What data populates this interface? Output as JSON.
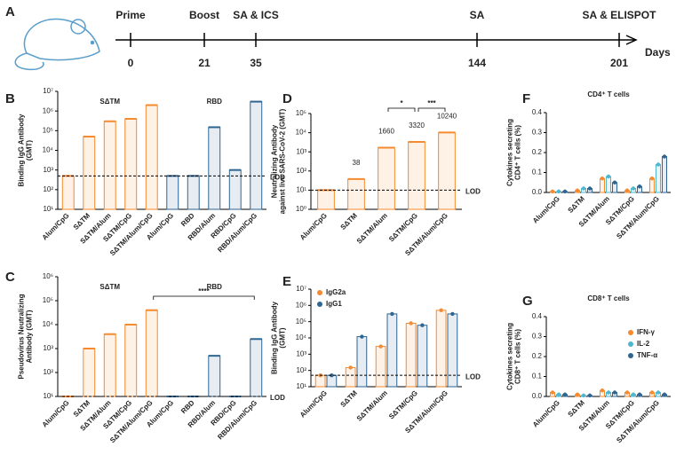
{
  "timeline": {
    "label": "A",
    "unit": "Days",
    "events": [
      {
        "name": "Prime",
        "day": 0
      },
      {
        "name": "Boost",
        "day": 21
      },
      {
        "name": "SA & ICS",
        "day": 35
      },
      {
        "name": "SA",
        "day": 144
      },
      {
        "name": "SA & ELISPOT",
        "day": 201
      }
    ]
  },
  "chart_data": [
    {
      "type": "bar",
      "label": "B",
      "log_scale": true,
      "ylabel": [
        "Binding IgG Antibody",
        "(GMT)"
      ],
      "categories": [
        "Alum/CpG",
        "SΔTM",
        "SΔTM/Alum",
        "SΔTM/CpG",
        "SΔTM/Alum/CpG",
        "Alum/CpG",
        "RBD",
        "RBD/Alum",
        "RBD/CpG",
        "RBD/Alum/CpG"
      ],
      "values": [
        500,
        50000,
        300000,
        400000,
        2000000,
        500,
        500,
        150000,
        1000,
        3000000
      ],
      "colors": [
        "#f58a2e",
        "#f58a2e",
        "#f58a2e",
        "#f58a2e",
        "#f58a2e",
        "#2f6591",
        "#2f6591",
        "#2f6591",
        "#2f6591",
        "#2f6591"
      ],
      "groups": [
        {
          "label": "SΔTM",
          "color": "#f58a2e"
        },
        {
          "label": "RBD",
          "color": "#2f6591"
        }
      ],
      "lod": 500,
      "lod_label": "LOD",
      "ylim": [
        10,
        10000000
      ],
      "yticks": [
        {
          "value": 10,
          "label": "10¹"
        },
        {
          "value": 100,
          "label": "10²"
        },
        {
          "value": 1000,
          "label": "10³"
        },
        {
          "value": 10000,
          "label": "10⁴"
        },
        {
          "value": 100000,
          "label": "10⁵"
        },
        {
          "value": 1000000,
          "label": "10⁶"
        },
        {
          "value": 10000000,
          "label": "10⁷"
        }
      ]
    },
    {
      "type": "bar",
      "label": "C",
      "log_scale": true,
      "ylabel": [
        "Pseudovirus Neutralizing",
        "Antibody (GMT)"
      ],
      "categories": [
        "Alum/CpG",
        "SΔTM",
        "SΔTM/Alum",
        "SΔTM/CpG",
        "SΔTM/Alum/CpG",
        "Alum/CpG",
        "RBD",
        "RBD/Alum",
        "RBD/CpG",
        "RBD/Alum/CpG"
      ],
      "values": [
        10,
        1000,
        4000,
        10000,
        40000,
        10,
        10,
        500,
        10,
        2500
      ],
      "colors": [
        "#f58a2e",
        "#f58a2e",
        "#f58a2e",
        "#f58a2e",
        "#f58a2e",
        "#2f6591",
        "#2f6591",
        "#2f6591",
        "#2f6591",
        "#2f6591"
      ],
      "groups": [
        {
          "label": "SΔTM",
          "color": "#f58a2e"
        },
        {
          "label": "RBD",
          "color": "#2f6591"
        }
      ],
      "annotations": [
        {
          "text": "****",
          "between": [
            4,
            9
          ]
        }
      ],
      "lod": 10,
      "lod_label": "LOD",
      "ylim": [
        10,
        1000000
      ],
      "yticks": [
        {
          "value": 10,
          "label": "10¹"
        },
        {
          "value": 100,
          "label": "10²"
        },
        {
          "value": 1000,
          "label": "10³"
        },
        {
          "value": 10000,
          "label": "10⁴"
        },
        {
          "value": 100000,
          "label": "10⁵"
        },
        {
          "value": 1000000,
          "label": "10⁶"
        }
      ]
    },
    {
      "type": "bar",
      "label": "D",
      "log_scale": true,
      "ylabel": [
        "Neutralizing Antibody",
        "against live SARS-CoV-2 (GMT)"
      ],
      "categories": [
        "Alum/CpG",
        "SΔTM",
        "SΔTM/Alum",
        "SΔTM/CpG",
        "SΔTM/Alum/CpG"
      ],
      "values": [
        10,
        38,
        1660,
        3320,
        10240
      ],
      "value_labels": [
        null,
        "38",
        "1660",
        "3320",
        "10240"
      ],
      "colors": [
        "#f58a2e",
        "#f58a2e",
        "#f58a2e",
        "#f58a2e",
        "#f58a2e"
      ],
      "annotations": [
        {
          "text": "*",
          "between": [
            2,
            3
          ]
        },
        {
          "text": "***",
          "between": [
            3,
            4
          ]
        }
      ],
      "lod": 10,
      "lod_label": "LOD",
      "ylim": [
        1,
        100000
      ],
      "yticks": [
        {
          "value": 1,
          "label": "10⁰"
        },
        {
          "value": 10,
          "label": "10¹"
        },
        {
          "value": 100,
          "label": "10²"
        },
        {
          "value": 1000,
          "label": "10³"
        },
        {
          "value": 10000,
          "label": "10⁴"
        },
        {
          "value": 100000,
          "label": "10⁵"
        }
      ]
    },
    {
      "type": "grouped_bar",
      "label": "E",
      "log_scale": true,
      "ylabel": [
        "Binding IgG Antibody",
        "(GMT)"
      ],
      "legend": "top-left",
      "categories": [
        "Alum/CpG",
        "SΔTM",
        "SΔTM/Alum",
        "SΔTM/CpG",
        "SΔTM/Alum/CpG"
      ],
      "series": [
        {
          "name": "IgG2a",
          "color": "#f58a2e",
          "values": [
            50,
            150,
            3000,
            80000,
            500000
          ]
        },
        {
          "name": "IgG1",
          "color": "#2f6591",
          "values": [
            50,
            12000,
            300000,
            60000,
            300000
          ]
        }
      ],
      "lod": 50,
      "lod_label": "LOD",
      "ylim": [
        10,
        10000000
      ],
      "yticks": [
        {
          "value": 10,
          "label": "10¹"
        },
        {
          "value": 100,
          "label": "10²"
        },
        {
          "value": 1000,
          "label": "10³"
        },
        {
          "value": 10000,
          "label": "10⁴"
        },
        {
          "value": 100000,
          "label": "10⁵"
        },
        {
          "value": 1000000,
          "label": "10⁶"
        },
        {
          "value": 10000000,
          "label": "10⁷"
        }
      ]
    },
    {
      "type": "grouped_bar",
      "label": "F",
      "title": "CD4⁺ T cells",
      "log_scale": false,
      "ylabel": [
        "Cytokines secreting",
        "CD4⁺ T cells (%)"
      ],
      "legend": "none",
      "categories": [
        "Alum/CpG",
        "SΔTM",
        "SΔTM/Alum",
        "SΔTM/CpG",
        "SΔTM/Alum/CpG"
      ],
      "series": [
        {
          "name": "IFN-γ",
          "color": "#f58a2e",
          "values": [
            0.005,
            0.01,
            0.07,
            0.01,
            0.07
          ]
        },
        {
          "name": "IL-2",
          "color": "#4fb6d0",
          "values": [
            0.005,
            0.02,
            0.08,
            0.02,
            0.14
          ]
        },
        {
          "name": "TNF-α",
          "color": "#2f6591",
          "values": [
            0.005,
            0.02,
            0.05,
            0.03,
            0.18
          ]
        }
      ],
      "ylim": [
        0,
        0.4
      ],
      "yticks": [
        {
          "value": 0,
          "label": "0.0"
        },
        0.1,
        0.2,
        0.3,
        0.4
      ]
    },
    {
      "type": "grouped_bar",
      "label": "G",
      "title": "CD8⁺ T cells",
      "log_scale": false,
      "ylabel": [
        "Cytokines secreting",
        "CD8⁺ T cells (%)"
      ],
      "legend": "right",
      "categories": [
        "Alum/CpG",
        "SΔTM",
        "SΔTM/Alum",
        "SΔTM/CpG",
        "SΔTM/Alum/CpG"
      ],
      "series": [
        {
          "name": "IFN-γ",
          "color": "#f58a2e",
          "values": [
            0.02,
            0.01,
            0.03,
            0.02,
            0.02
          ]
        },
        {
          "name": "IL-2",
          "color": "#4fb6d0",
          "values": [
            0.01,
            0.005,
            0.02,
            0.01,
            0.02
          ]
        },
        {
          "name": "TNF-α",
          "color": "#2f6591",
          "values": [
            0.01,
            0.005,
            0.02,
            0.01,
            0.01
          ]
        }
      ],
      "ylim": [
        0,
        0.4
      ],
      "yticks": [
        {
          "value": 0,
          "label": "0.0"
        },
        0.1,
        0.2,
        0.3,
        0.4
      ]
    }
  ]
}
